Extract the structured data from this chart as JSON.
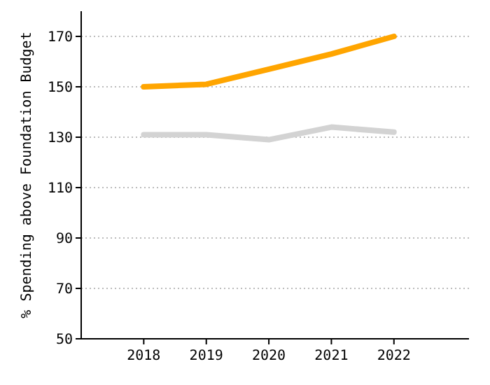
{
  "chart_data": {
    "type": "line",
    "ylabel": "% Spending above Foundation Budget",
    "x": [
      2018,
      2019,
      2020,
      2021,
      2022
    ],
    "xlim": [
      2017,
      2023.2
    ],
    "xticks": [
      2018,
      2019,
      2020,
      2021,
      2022
    ],
    "ylim": [
      50,
      180
    ],
    "yticks": [
      50,
      70,
      90,
      110,
      130,
      150,
      170
    ],
    "grid": "y",
    "series": [
      {
        "color": "#ffa500",
        "values": [
          150,
          151,
          157,
          163,
          170
        ]
      },
      {
        "color": "#d3d3d3",
        "values": [
          131,
          131,
          129,
          134,
          132
        ]
      }
    ]
  }
}
